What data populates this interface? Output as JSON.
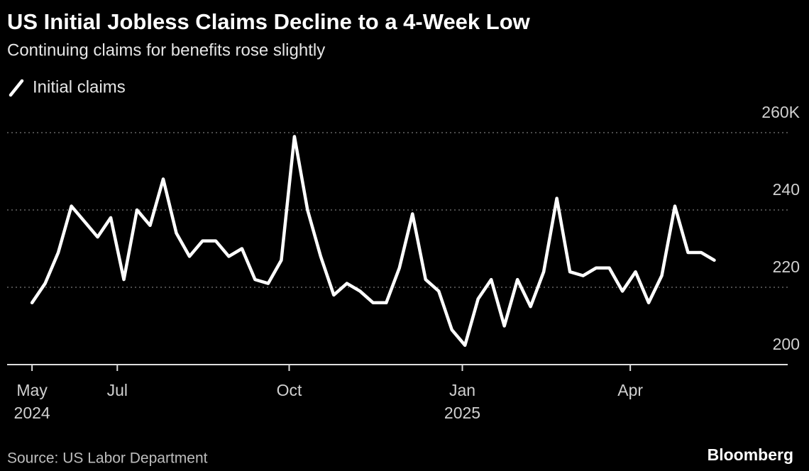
{
  "chart_data": {
    "type": "line",
    "title": "US Initial Jobless Claims Decline to a 4-Week Low",
    "subtitle": "Continuing claims for benefits rose slightly",
    "source": "Source: US Labor Department",
    "brand": "Bloomberg",
    "x": [
      0,
      1,
      2,
      3,
      4,
      5,
      6,
      7,
      8,
      9,
      10,
      11,
      12,
      13,
      14,
      15,
      16,
      17,
      18,
      19,
      20,
      21,
      22,
      23,
      24,
      25,
      26,
      27,
      28,
      29,
      30,
      31,
      32,
      33,
      34,
      35,
      36,
      37,
      38,
      39,
      40,
      41,
      42,
      43,
      44,
      45,
      46,
      47,
      48,
      49,
      50,
      51,
      52
    ],
    "series": [
      {
        "name": "Initial claims",
        "color": "#ffffff",
        "values": [
          216,
          221,
          229,
          241,
          237,
          233,
          238,
          222,
          240,
          236,
          248,
          234,
          228,
          232,
          232,
          228,
          230,
          222,
          221,
          227,
          259,
          240,
          228,
          218,
          221,
          219,
          216,
          216,
          225,
          239,
          222,
          219,
          209,
          205,
          217,
          222,
          210,
          222,
          215,
          224,
          243,
          224,
          223,
          225,
          225,
          219,
          224,
          216,
          223,
          241,
          229,
          229,
          227
        ]
      }
    ],
    "xlim": [
      -1.9,
      57.6
    ],
    "xticks": [
      {
        "value": 0,
        "label": "May"
      },
      {
        "value": 6.5,
        "label": "Jul"
      },
      {
        "value": 19.6,
        "label": "Oct"
      },
      {
        "value": 32.8,
        "label": "Jan"
      },
      {
        "value": 45.6,
        "label": "Apr"
      }
    ],
    "xtick_years": [
      {
        "value": 0,
        "label": "2024"
      },
      {
        "value": 32.8,
        "label": "2025"
      }
    ],
    "ylim": [
      200,
      260
    ],
    "yticks": [
      200,
      220,
      240,
      {
        "value": 260,
        "label": "260K"
      }
    ],
    "grid": true
  }
}
